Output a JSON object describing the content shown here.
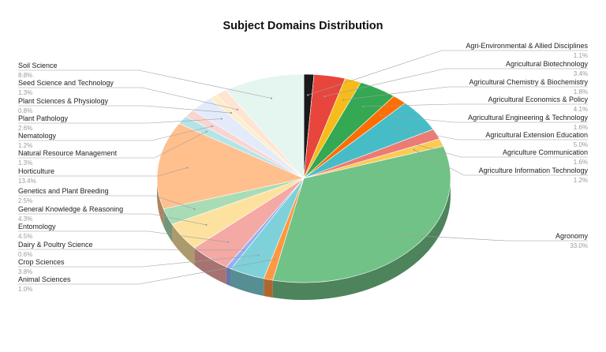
{
  "chart_data": {
    "type": "pie",
    "title": "Subject Domains Distribution",
    "style": "3d",
    "legend": "none",
    "slices": [
      {
        "name": "Agri-Environmental & Allied Disciplines",
        "value": 1.1,
        "label": "1.1%",
        "color": "#1a1a1a"
      },
      {
        "name": "Agricultural Biotechnology",
        "value": 3.4,
        "label": "3.4%",
        "color": "#e8453c"
      },
      {
        "name": "Agricultural Chemistry & Biochemistry",
        "value": 1.8,
        "label": "1.8%",
        "color": "#f8bc1a"
      },
      {
        "name": "Agricultural Economics & Policy",
        "value": 4.1,
        "label": "4.1%",
        "color": "#34a853"
      },
      {
        "name": "Agricultural Engineering & Technology",
        "value": 1.6,
        "label": "1.6%",
        "color": "#ff6d01"
      },
      {
        "name": "Agricultural Extension Education",
        "value": 5.0,
        "label": "5.0%",
        "color": "#46bdc6"
      },
      {
        "name": "Agriculture Communication",
        "value": 1.6,
        "label": "1.6%",
        "color": "#ee7a74"
      },
      {
        "name": "Agriculture Information Technology",
        "value": 1.2,
        "label": "1.2%",
        "color": "#fbcb55"
      },
      {
        "name": "Agronomy",
        "value": 33.0,
        "label": "33.0%",
        "color": "#71c287"
      },
      {
        "name": "Animal Sciences",
        "value": 1.0,
        "label": "1.0%",
        "color": "#ff9842"
      },
      {
        "name": "Crop Sciences",
        "value": 3.8,
        "label": "3.8%",
        "color": "#7ed1d8"
      },
      {
        "name": "Dairy & Poultry Science",
        "value": 0.6,
        "label": "0.6%",
        "color": "#92b1f6"
      },
      {
        "name": "Entomology",
        "value": 4.5,
        "label": "4.5%",
        "color": "#f4a9a5"
      },
      {
        "name": "General Knowledge & Reasoning",
        "value": 4.3,
        "label": "4.3%",
        "color": "#fde29f"
      },
      {
        "name": "Genetics and Plant Breeding",
        "value": 2.5,
        "label": "2.5%",
        "color": "#a9dcb5"
      },
      {
        "name": "Horticulture",
        "value": 13.4,
        "label": "13.4%",
        "color": "#ffc08e"
      },
      {
        "name": "Natural Resource Management",
        "value": 1.3,
        "label": "1.3%",
        "color": "#b5e4e8"
      },
      {
        "name": "Nematology",
        "value": 1.2,
        "label": "1.2%",
        "color": "#f8d5d3"
      },
      {
        "name": "Plant Pathology",
        "value": 2.6,
        "label": "2.6%",
        "color": "#e3ebfb"
      },
      {
        "name": "Plant Sciences & Physiology",
        "value": 0.8,
        "label": "0.8%",
        "color": "#fdedc9"
      },
      {
        "name": "Seed Science and Technology",
        "value": 1.3,
        "label": "1.3%",
        "color": "#fee4d1"
      },
      {
        "name": "Soil Science",
        "value": 8.8,
        "label": "8.8%",
        "color": "#e5f5f0"
      }
    ]
  }
}
